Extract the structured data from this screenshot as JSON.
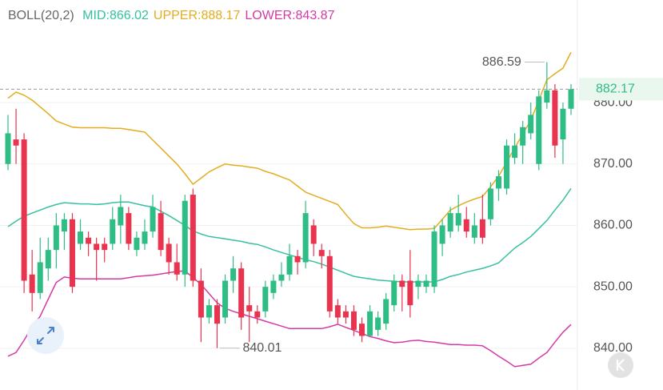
{
  "chart_data": {
    "type": "candlestick",
    "indicator": "BOLL(20,2)",
    "up_color": "#2ebd85",
    "down_color": "#e8344e",
    "open": [
      870,
      874,
      874,
      852,
      849,
      853,
      856,
      859,
      861,
      857,
      858,
      857,
      857,
      857,
      860,
      862,
      856,
      857,
      859,
      862,
      857,
      854,
      852,
      865,
      851,
      845,
      847,
      845,
      851,
      853,
      847,
      846,
      846,
      849,
      851,
      852,
      855,
      854,
      860,
      856,
      855,
      847,
      846,
      846,
      844,
      842,
      843,
      844,
      847,
      851,
      851,
      850,
      850,
      850,
      857,
      859,
      860,
      861,
      858,
      861,
      861,
      866,
      866,
      871,
      873,
      875,
      870,
      880,
      882,
      874,
      879
    ],
    "high": [
      878,
      879,
      875,
      856,
      858,
      858,
      862,
      862,
      862,
      861,
      859,
      858,
      858,
      863,
      865,
      863,
      859,
      861,
      865,
      864,
      858,
      857,
      865,
      866,
      853,
      848,
      848,
      852,
      855,
      854,
      850,
      847,
      851,
      852,
      854,
      857,
      856,
      864,
      861,
      857,
      856,
      848,
      847,
      847,
      845,
      847,
      846,
      849,
      852,
      852,
      856,
      852,
      852,
      860,
      861,
      863,
      865,
      863,
      862,
      865,
      867,
      869,
      874,
      875,
      877,
      880,
      882,
      886.59,
      883,
      880,
      883
    ],
    "low": [
      869,
      870,
      849,
      846,
      848,
      851,
      853,
      856,
      849,
      856,
      855,
      851,
      854,
      856,
      857,
      856,
      855,
      856,
      858,
      855,
      852,
      851,
      850,
      850,
      841,
      844,
      840.01,
      844,
      849,
      843,
      841,
      844,
      845,
      848,
      850,
      851,
      852,
      853,
      855,
      853,
      845,
      844,
      844,
      842,
      841,
      842,
      842,
      843,
      846,
      846,
      845,
      848,
      849,
      849,
      855,
      858,
      859,
      858,
      857,
      857,
      860,
      864,
      865,
      870,
      870,
      874,
      869,
      879,
      871,
      870,
      878
    ],
    "close": [
      875,
      873,
      851,
      849,
      854,
      856,
      860,
      861,
      850,
      859,
      857,
      856,
      856,
      861,
      863,
      857,
      858,
      859,
      863,
      856,
      854,
      852,
      864,
      851,
      845,
      847,
      844,
      851,
      853,
      845,
      846,
      845,
      850,
      851,
      852,
      855,
      854,
      862,
      857,
      855,
      846,
      845,
      845,
      843,
      842,
      846,
      845,
      848,
      851,
      850,
      847,
      851,
      851,
      859,
      860,
      862,
      862,
      859,
      860,
      858,
      866,
      868,
      873,
      873,
      876,
      878,
      881,
      882,
      873,
      879,
      882.17
    ],
    "series": [
      {
        "name": "MID:866.02",
        "color": "#35c1a1",
        "values": [
          859.8,
          860.7,
          861.5,
          862.0,
          862.5,
          863.0,
          863.4,
          863.7,
          863.6,
          863.5,
          863.5,
          863.4,
          863.5,
          863.7,
          863.8,
          863.8,
          863.5,
          863.2,
          863.0,
          862.3,
          861.6,
          860.8,
          860.0,
          859.1,
          858.6,
          858.2,
          858.0,
          857.8,
          857.6,
          857.4,
          857.1,
          856.9,
          856.5,
          856.0,
          855.6,
          855.2,
          854.8,
          854.4,
          854.1,
          853.7,
          853.2,
          852.7,
          852.2,
          851.7,
          851.5,
          851.3,
          851.1,
          851.0,
          850.9,
          850.8,
          850.8,
          850.8,
          850.8,
          850.8,
          851.2,
          851.7,
          852.0,
          852.4,
          852.7,
          853.0,
          853.4,
          853.9,
          855.1,
          856.3,
          857.2,
          858.2,
          859.5,
          860.8,
          862.5,
          864.1,
          866.02
        ]
      },
      {
        "name": "UPPER:888.17",
        "color": "#e2ad1f",
        "values": [
          880.7,
          881.7,
          881.2,
          880.4,
          879.3,
          878.2,
          877.0,
          876.5,
          876.0,
          875.9,
          875.9,
          875.9,
          875.9,
          875.8,
          875.8,
          875.6,
          875.4,
          875.2,
          873.9,
          872.6,
          871.3,
          870.0,
          868.4,
          866.7,
          867.7,
          868.7,
          869.4,
          870.0,
          869.8,
          869.7,
          869.5,
          869.3,
          868.8,
          868.4,
          867.9,
          867.4,
          866.4,
          865.4,
          864.9,
          864.4,
          863.9,
          863.4,
          861.8,
          860.3,
          859.6,
          859.6,
          859.7,
          859.9,
          859.7,
          859.5,
          859.3,
          859.4,
          859.4,
          859.5,
          861.0,
          862.5,
          863.2,
          863.8,
          864.3,
          864.7,
          866.3,
          868.0,
          870.3,
          872.6,
          874.9,
          877.1,
          880.4,
          883.7,
          884.7,
          885.6,
          888.17
        ]
      },
      {
        "name": "LOWER:843.87",
        "color": "#d43aa5",
        "values": [
          838.7,
          839.3,
          841.3,
          843.5,
          845.2,
          848.0,
          850.7,
          851.6,
          851.4,
          851.3,
          851.3,
          851.3,
          851.3,
          851.3,
          851.3,
          851.5,
          851.7,
          851.8,
          851.9,
          852.1,
          852.3,
          852.5,
          852.6,
          851.5,
          850.4,
          848.9,
          847.4,
          846.5,
          846.0,
          845.6,
          845.2,
          844.8,
          844.4,
          844.0,
          843.6,
          843.2,
          843.2,
          843.2,
          843.2,
          843.2,
          843.5,
          843.9,
          843.4,
          842.9,
          842.4,
          841.9,
          841.6,
          841.2,
          840.9,
          841.0,
          841.2,
          841.3,
          841.1,
          841.0,
          840.8,
          840.6,
          840.6,
          840.5,
          840.5,
          840.4,
          839.6,
          838.7,
          837.9,
          837.0,
          837.2,
          837.4,
          838.4,
          839.3,
          841.0,
          842.6,
          843.87
        ]
      }
    ],
    "ylim": [
      833.2,
      896.7
    ],
    "yticks": [
      {
        "value": 840,
        "label": "840.00"
      },
      {
        "value": 850,
        "label": "850.00"
      },
      {
        "value": 860,
        "label": "860.00"
      },
      {
        "value": 870,
        "label": "870.00"
      },
      {
        "value": 880,
        "label": "880.00"
      }
    ],
    "grid": true
  }
}
